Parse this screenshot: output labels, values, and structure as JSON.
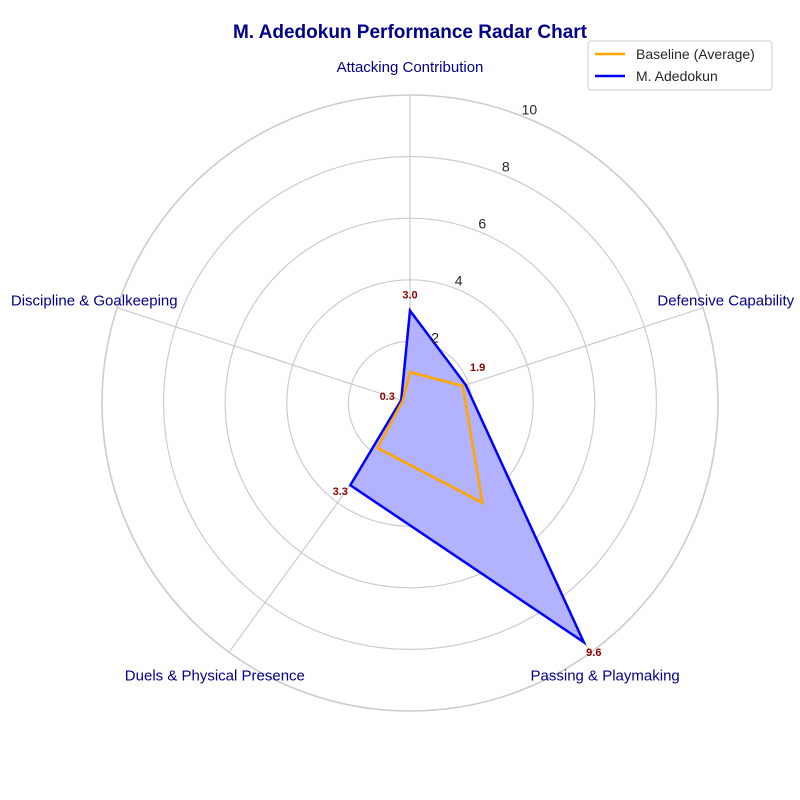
{
  "chart_data": {
    "type": "radar",
    "title": "M. Adedokun Performance Radar Chart",
    "axes": [
      "Attacking Contribution",
      "Defensive Capability",
      "Passing & Playmaking",
      "Duels & Physical Presence",
      "Discipline & Goalkeeping"
    ],
    "radial_ticks": [
      "2",
      "4",
      "6",
      "8",
      "10"
    ],
    "rlim": [
      0,
      10
    ],
    "grid": true,
    "legend_position": "top-right",
    "series": [
      {
        "name": "Baseline (Average)",
        "values": [
          1.0,
          1.8,
          4.0,
          1.8,
          0.25
        ],
        "color": "#FFA500",
        "filled": false
      },
      {
        "name": "M. Adedokun",
        "values": [
          3.0,
          1.9,
          9.6,
          3.3,
          0.3
        ],
        "value_labels": [
          "3.0",
          "1.9",
          "9.6",
          "3.3",
          "0.3"
        ],
        "color": "#0000FF",
        "fill_color": "#B0B0FF",
        "filled": true
      }
    ],
    "colors": {
      "title": "#00008B",
      "axis_label": "#00008B",
      "value_label": "#8B0000",
      "grid": "#CCCCCC",
      "legend_border": "#CCCCCC"
    }
  }
}
